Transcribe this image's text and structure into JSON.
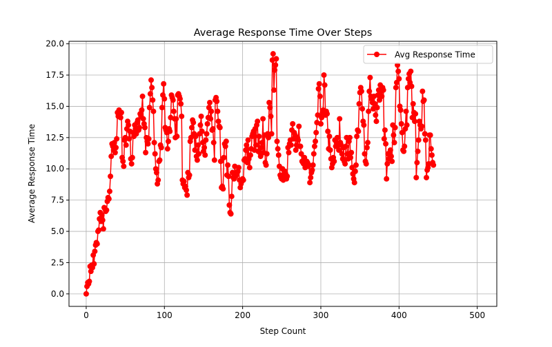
{
  "chart_data": {
    "type": "line",
    "title": "Average Response Time Over Steps",
    "xlabel": "Step Count",
    "ylabel": "Average Response Time",
    "xlim": [
      -22,
      525
    ],
    "ylim": [
      -1.0,
      20.2
    ],
    "x_ticks": [
      0,
      100,
      200,
      300,
      400,
      500
    ],
    "x_tick_labels": [
      "0",
      "100",
      "200",
      "300",
      "400",
      "500"
    ],
    "y_ticks": [
      0,
      2.5,
      5,
      7.5,
      10,
      12.5,
      15,
      17.5,
      20
    ],
    "y_tick_labels": [
      "0.0",
      "2.5",
      "5.0",
      "7.5",
      "10.0",
      "12.5",
      "15.0",
      "17.5",
      "20.0"
    ],
    "grid": true,
    "legend_position": "top-right",
    "series": [
      {
        "name": "Avg Response Time",
        "color": "#ff0000",
        "marker": "circle",
        "x_start": 0,
        "x_step": 1,
        "values": [
          0.0,
          0.6,
          0.9,
          0.8,
          1.0,
          2.2,
          1.8,
          2.3,
          2.1,
          3.1,
          2.4,
          3.4,
          3.9,
          4.1,
          4.0,
          5.0,
          5.1,
          6.0,
          6.5,
          5.8,
          6.3,
          5.9,
          5.2,
          6.9,
          6.8,
          6.6,
          6.7,
          7.4,
          7.7,
          7.6,
          8.2,
          9.4,
          11.0,
          12.0,
          11.8,
          11.5,
          12.1,
          11.3,
          11.7,
          12.4,
          14.5,
          14.2,
          14.7,
          14.2,
          14.1,
          14.5,
          10.9,
          10.6,
          10.2,
          12.3,
          12.5,
          11.9,
          13.2,
          13.8,
          13.5,
          12.4,
          13.0,
          10.8,
          10.4,
          10.9,
          12.9,
          12.6,
          13.5,
          13.2,
          12.8,
          13.7,
          13.9,
          13.1,
          13.3,
          14.4,
          14.2,
          14.7,
          15.8,
          14.0,
          13.6,
          13.3,
          11.3,
          12.5,
          12.2,
          12.0,
          12.4,
          14.9,
          16.0,
          17.1,
          16.5,
          15.5,
          14.6,
          12.1,
          11.2,
          10.0,
          9.7,
          8.8,
          9.1,
          10.6,
          10.7,
          11.9,
          11.7,
          14.9,
          15.9,
          16.8,
          15.6,
          13.3,
          13.1,
          12.9,
          11.6,
          12.2,
          13.2,
          13.0,
          14.1,
          15.9,
          15.7,
          15.5,
          14.6,
          14.0,
          12.5,
          14.0,
          12.6,
          15.9,
          16.0,
          15.8,
          15.6,
          15.2,
          14.2,
          9.1,
          8.8,
          9.0,
          8.5,
          8.6,
          8.3,
          7.9,
          9.7,
          9.3,
          9.5,
          12.2,
          12.5,
          13.3,
          13.9,
          13.7,
          12.8,
          11.5,
          12.6,
          11.0,
          10.7,
          11.9,
          11.2,
          12.8,
          13.5,
          14.2,
          13.0,
          12.1,
          11.4,
          11.7,
          11.1,
          12.3,
          12.8,
          13.6,
          14.1,
          14.9,
          15.3,
          14.0,
          14.6,
          13.1,
          13.2,
          12.1,
          10.7,
          15.5,
          15.7,
          15.4,
          14.6,
          13.8,
          13.4,
          13.3,
          10.6,
          8.5,
          8.6,
          8.4,
          10.9,
          12.0,
          11.8,
          12.2,
          9.5,
          10.3,
          9.4,
          7.1,
          6.5,
          6.4,
          7.8,
          9.7,
          9.3,
          9.2,
          10.2,
          9.4,
          9.5,
          9.7,
          9.8,
          10.1,
          9.1,
          8.5,
          8.8,
          9.0,
          9.2,
          9.1,
          10.7,
          10.8,
          11.5,
          11.9,
          10.5,
          12.3,
          10.8,
          10.1,
          11.1,
          11.6,
          12.6,
          12.8,
          13.0,
          11.5,
          13.2,
          11.9,
          13.5,
          13.8,
          11.4,
          12.6,
          11.3,
          11.0,
          11.7,
          12.1,
          14.0,
          11.3,
          12.7,
          10.5,
          10.3,
          11.2,
          12.8,
          12.5,
          15.3,
          14.9,
          14.2,
          12.8,
          18.7,
          19.2,
          16.3,
          17.9,
          18.3,
          18.8,
          12.2,
          11.6,
          11.1,
          10.2,
          9.5,
          9.3,
          9.2,
          10.0,
          9.1,
          9.4,
          9.8,
          9.6,
          9.2,
          9.4,
          11.7,
          11.3,
          12.0,
          12.3,
          11.9,
          13.1,
          13.6,
          12.4,
          12.9,
          12.7,
          11.5,
          11.9,
          12.5,
          12.3,
          13.4,
          11.8,
          11.8,
          11.2,
          10.6,
          10.5,
          10.4,
          10.9,
          10.1,
          10.3,
          10.6,
          10.5,
          10.2,
          10.3,
          8.9,
          9.3,
          9.7,
          9.9,
          10.3,
          11.2,
          11.8,
          12.2,
          12.9,
          13.7,
          14.3,
          16.4,
          16.8,
          15.8,
          13.6,
          14.1,
          14.5,
          14.7,
          17.5,
          16.7,
          14.3,
          14.6,
          14.4,
          13.0,
          11.6,
          12.6,
          11.5,
          10.8,
          10.1,
          10.4,
          10.9,
          10.6,
          12.3,
          11.8,
          12.1,
          12.5,
          11.9,
          11.5,
          14.0,
          12.1,
          11.9,
          11.2,
          10.8,
          11.7,
          10.6,
          10.4,
          11.8,
          12.5,
          11.2,
          10.8,
          12.2,
          12.5,
          10.9,
          11.3,
          10.1,
          9.6,
          9.2,
          8.9,
          9.8,
          10.3,
          12.6,
          13.1,
          13.0,
          15.2,
          16.1,
          16.5,
          16.2,
          14.8,
          13.8,
          13.5,
          11.2,
          10.6,
          10.4,
          11.7,
          12.1,
          14.6,
          16.2,
          17.3,
          15.8,
          15.6,
          15.3,
          14.8,
          15.8,
          15.2,
          14.3,
          13.8,
          14.9,
          15.9,
          16.3,
          15.5,
          16.7,
          16.2,
          15.8,
          16.5,
          16.3,
          12.4,
          13.1,
          12.0,
          9.2,
          10.4,
          11.2,
          10.8,
          11.3,
          11.5,
          11.0,
          10.6,
          13.5,
          12.7,
          12.1,
          13.3,
          16.5,
          16.9,
          18.3,
          17.8,
          17.2,
          15.0,
          14.7,
          13.6,
          12.9,
          11.5,
          11.4,
          11.8,
          13.2,
          14.6,
          13.5,
          16.5,
          17.2,
          17.6,
          16.9,
          17.8,
          16.6,
          14.1,
          15.2,
          14.5,
          13.8,
          14.4,
          9.3,
          10.5,
          11.4,
          12.3,
          13.8,
          13.5,
          13.2,
          13.4,
          16.2,
          15.4,
          15.5,
          12.8,
          12.3,
          9.3,
          9.9,
          10.1,
          10.4,
          12.7,
          12.7,
          11.6,
          11.1,
          10.5,
          10.3
        ]
      }
    ]
  }
}
